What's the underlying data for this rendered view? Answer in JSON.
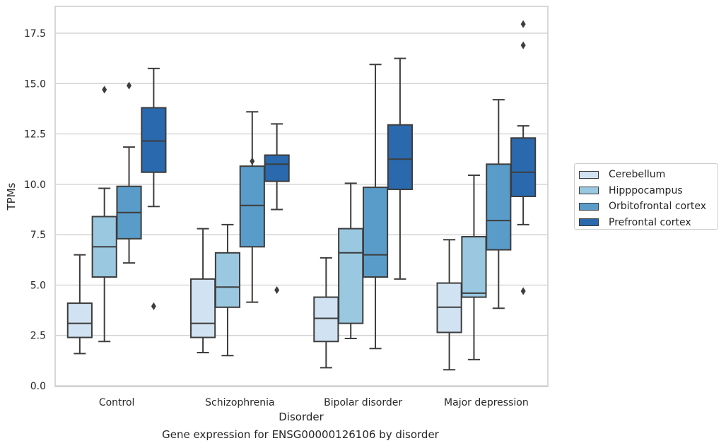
{
  "caption": "Gene expression for ENSG00000126106 by disorder",
  "chart_data": {
    "type": "box",
    "xlabel": "Disorder",
    "ylabel": "TPMs",
    "ylim": [
      0,
      18.8
    ],
    "yticks": [
      "0.0",
      "2.5",
      "5.0",
      "7.5",
      "10.0",
      "12.5",
      "15.0",
      "17.5"
    ],
    "ytick_values": [
      0,
      2.5,
      5,
      7.5,
      10,
      12.5,
      15,
      17.5
    ],
    "grid": "horizontal",
    "legend_placement": "right",
    "categories": [
      "Control",
      "Schizophrenia",
      "Bipolar disorder",
      "Major depression"
    ],
    "series": [
      {
        "name": "Cerebellum",
        "color": "#d1e2f2",
        "boxes": [
          {
            "min": 1.6,
            "q1": 2.4,
            "median": 3.1,
            "q3": 4.1,
            "max": 6.5,
            "outliers": []
          },
          {
            "min": 1.65,
            "q1": 2.4,
            "median": 3.1,
            "q3": 5.3,
            "max": 7.8,
            "outliers": []
          },
          {
            "min": 0.9,
            "q1": 2.2,
            "median": 3.35,
            "q3": 4.4,
            "max": 6.35,
            "outliers": []
          },
          {
            "min": 0.8,
            "q1": 2.65,
            "median": 3.9,
            "q3": 5.1,
            "max": 7.25,
            "outliers": []
          }
        ]
      },
      {
        "name": "Hipppocampus",
        "color": "#9ac8e0",
        "boxes": [
          {
            "min": 2.2,
            "q1": 5.4,
            "median": 6.9,
            "q3": 8.4,
            "max": 9.8,
            "outliers": [
              14.7
            ]
          },
          {
            "min": 1.5,
            "q1": 3.9,
            "median": 4.9,
            "q3": 6.6,
            "max": 8.0,
            "outliers": []
          },
          {
            "min": 2.35,
            "q1": 3.1,
            "median": 6.6,
            "q3": 7.8,
            "max": 10.05,
            "outliers": []
          },
          {
            "min": 1.3,
            "q1": 4.4,
            "median": 4.6,
            "q3": 7.4,
            "max": 10.45,
            "outliers": []
          }
        ]
      },
      {
        "name": "Orbitofrontal cortex",
        "color": "#5a9cc9",
        "boxes": [
          {
            "min": 6.1,
            "q1": 7.3,
            "median": 8.6,
            "q3": 9.9,
            "max": 11.85,
            "outliers": [
              14.9
            ]
          },
          {
            "min": 4.15,
            "q1": 6.9,
            "median": 8.95,
            "q3": 10.9,
            "max": 13.6,
            "outliers": [
              11.15
            ]
          },
          {
            "min": 1.85,
            "q1": 5.4,
            "median": 6.5,
            "q3": 9.85,
            "max": 15.95,
            "outliers": []
          },
          {
            "min": 3.85,
            "q1": 6.75,
            "median": 8.2,
            "q3": 11.0,
            "max": 14.2,
            "outliers": []
          }
        ]
      },
      {
        "name": "Prefrontal cortex",
        "color": "#2a69ad",
        "boxes": [
          {
            "min": 8.9,
            "q1": 10.6,
            "median": 12.15,
            "q3": 13.8,
            "max": 15.75,
            "outliers": [
              3.95
            ]
          },
          {
            "min": 8.75,
            "q1": 10.15,
            "median": 11.0,
            "q3": 11.45,
            "max": 13.0,
            "outliers": [
              4.75
            ]
          },
          {
            "min": 5.3,
            "q1": 9.75,
            "median": 11.25,
            "q3": 12.95,
            "max": 16.25,
            "outliers": []
          },
          {
            "min": 8.0,
            "q1": 9.4,
            "median": 10.6,
            "q3": 12.3,
            "max": 12.9,
            "outliers": [
              4.7,
              16.9,
              17.95
            ]
          }
        ]
      }
    ]
  }
}
